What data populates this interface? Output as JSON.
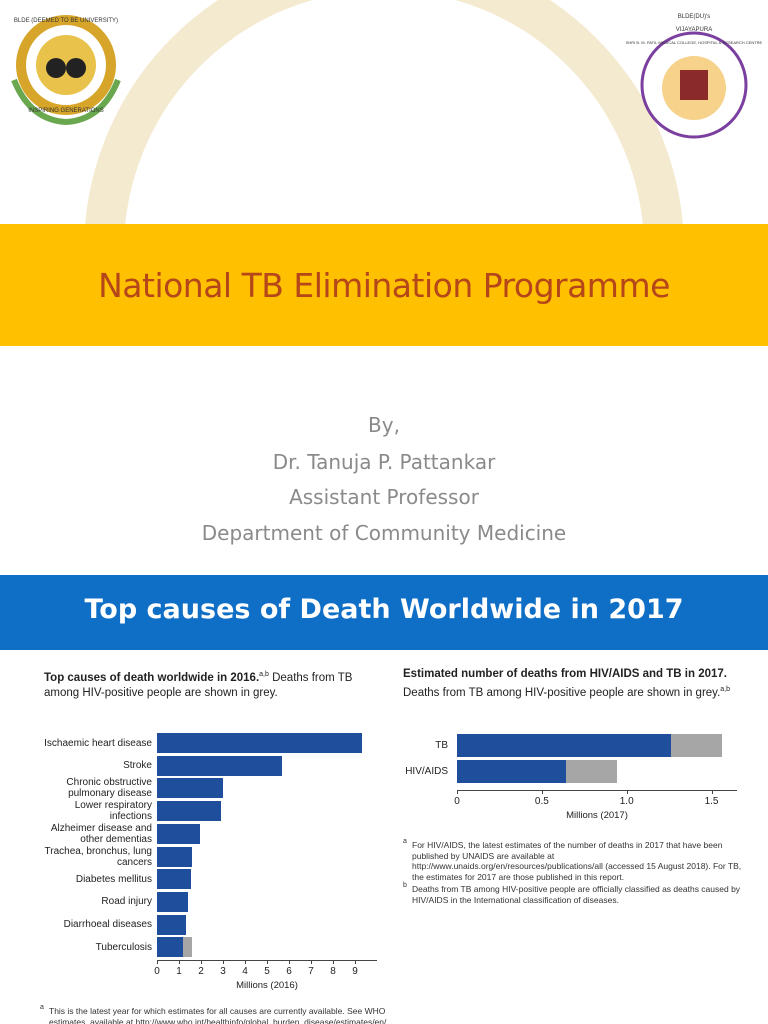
{
  "header": {
    "left_logo": {
      "top_text": "BLDE (DEEMED TO BE UNIVERSITY)",
      "bottom_text": "INSPIRING GENERATIONS"
    },
    "right_logo": {
      "top_text": "BLDE(DU)'s",
      "ring_text": "SHRI B. M. PATIL MEDICAL COLLEGE, HOSPITAL & RESEARCH CENTRE",
      "city": "VIJAYAPURA"
    }
  },
  "title": "National TB Elimination Programme",
  "byline": [
    "By,",
    "Dr. Tanuja P. Pattankar",
    "Assistant Professor",
    "Department of Community Medicine"
  ],
  "section_title": "Top causes of Death Worldwide in 2017",
  "chart_data": [
    {
      "type": "bar",
      "orientation": "horizontal",
      "stacked": true,
      "title": "Top causes of death worldwide in 2016.",
      "title_note": "a,b",
      "subtitle": "Deaths from TB among HIV-positive people are shown in grey.",
      "categories": [
        "Ischaemic heart disease",
        "Stroke",
        "Chronic obstructive pulmonary disease",
        "Lower respiratory infections",
        "Alzheimer disease and other dementias",
        "Trachea, bronchus, lung cancers",
        "Diabetes mellitus",
        "Road injury",
        "Diarrhoeal diseases",
        "Tuberculosis"
      ],
      "series": [
        {
          "color": "#1f4e9c",
          "values": [
            9.3,
            5.7,
            3.0,
            2.9,
            1.95,
            1.6,
            1.55,
            1.4,
            1.3,
            1.2
          ]
        },
        {
          "color": "#a6a6a6",
          "values": [
            null,
            null,
            null,
            null,
            null,
            null,
            null,
            null,
            null,
            0.4
          ]
        }
      ],
      "xlim": [
        0,
        10
      ],
      "xticks": [
        0,
        1,
        2,
        3,
        4,
        5,
        6,
        7,
        8,
        9
      ],
      "xlabel": "Millions (2016)",
      "footnotes": [
        {
          "marker": "a",
          "text": "This is the latest year for which estimates for all causes are currently available. See WHO estimates, available at http://www.who.int/healthinfo/global_burden_disease/estimates/en/"
        }
      ]
    },
    {
      "type": "bar",
      "orientation": "horizontal",
      "stacked": true,
      "title": "Estimated number of deaths from HIV/AIDS and TB in 2017.",
      "subtitle": "Deaths from TB among HIV-positive people are shown in grey.",
      "subtitle_note": "a,b",
      "categories": [
        "TB",
        "HIV/AIDS"
      ],
      "series": [
        {
          "color": "#1f4e9c",
          "values": [
            1.26,
            0.64
          ]
        },
        {
          "color": "#a6a6a6",
          "values": [
            0.3,
            0.3
          ]
        }
      ],
      "xlim": [
        0,
        1.65
      ],
      "xticks": [
        0,
        0.5,
        {
          "value": 1,
          "label": "1.0"
        },
        1.5
      ],
      "xlabel": "Millions (2017)",
      "footnotes": [
        {
          "marker": "a",
          "text": "For HIV/AIDS, the latest estimates of the number of deaths in 2017 that have been published by UNAIDS are available at http://www.unaids.org/en/resources/publications/all (accessed 15 August 2018). For TB, the estimates for 2017 are those published in this report."
        },
        {
          "marker": "b",
          "text": "Deaths from TB among HIV-positive people are officially classified as deaths caused by HIV/AIDS in the International classification of diseases."
        }
      ]
    }
  ]
}
